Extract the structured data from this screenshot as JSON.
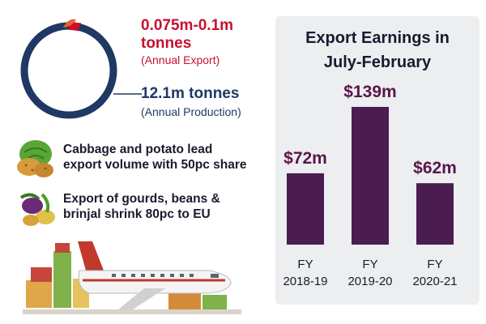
{
  "stats": {
    "export_value": "0.075m-0.1m",
    "export_unit": "tonnes",
    "export_caption": "(Annual Export)",
    "production_value": "12.1m tonnes",
    "production_caption": "(Annual Production)"
  },
  "facts": [
    {
      "line1": "Cabbage and potato lead",
      "line2": "export volume with 50pc share",
      "icon": "cabbage-potato-icon"
    },
    {
      "line1": "Export of gourds, beans &",
      "line2": "brinjal shrink 80pc to EU",
      "icon": "eggplant-beans-icon"
    }
  ],
  "illustration": "cargo-plane-with-crates",
  "colors": {
    "export": "#c8102e",
    "production": "#1f3864",
    "bar": "#4b1c4f",
    "panel": "#eceef0"
  },
  "chart_data": {
    "type": "bar",
    "title_line1": "Export Earnings in",
    "title_line2": "July-February",
    "categories": [
      [
        "FY",
        "2018-19"
      ],
      [
        "FY",
        "2019-20"
      ],
      [
        "FY",
        "2020-21"
      ]
    ],
    "values": [
      72,
      139,
      62
    ],
    "value_labels": [
      "$72m",
      "$139m",
      "$62m"
    ],
    "ylim": [
      0,
      139
    ]
  }
}
